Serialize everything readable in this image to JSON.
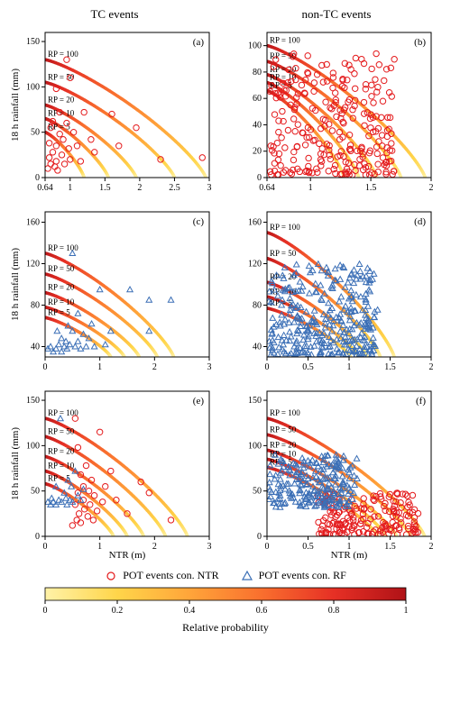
{
  "columns": [
    "TC events",
    "non-TC events"
  ],
  "ylabel": "18 h rainfall (mm)",
  "xlabel": "NTR (m)",
  "rp_labels": [
    "RP = 100",
    "RP = 50",
    "RP = 20",
    "RP = 10",
    "RP = 5"
  ],
  "legend": {
    "ntr": "POT events con. NTR",
    "rf": "POT events con. RF"
  },
  "cb": {
    "label": "Relative probability",
    "ticks": [
      0,
      0.2,
      0.4,
      0.6,
      0.8,
      1
    ],
    "colors": [
      "#fff2a8",
      "#ffd54a",
      "#ffa53a",
      "#f96f2e",
      "#e63025",
      "#b01217"
    ]
  },
  "style": {
    "axis_color": "#000",
    "tick_fontsize": 10,
    "label_fontsize": 11,
    "marker_size": 3.2,
    "ntr_color": "#e41a1c",
    "rf_color": "#3b6fb6",
    "curve_width": 3.5,
    "label_rp_fontsize": 9
  },
  "panels": {
    "a": {
      "tag": "(a)",
      "xlim": [
        0.64,
        3
      ],
      "ylim": [
        0,
        160
      ],
      "xticks": [
        0.64,
        1,
        1.5,
        2,
        2.5,
        3
      ],
      "yticks": [
        0,
        50,
        100,
        150
      ],
      "curves": [
        {
          "y0": 130,
          "x0": 2.95
        },
        {
          "y0": 105,
          "x0": 2.5
        },
        {
          "y0": 80,
          "x0": 1.95
        },
        {
          "y0": 65,
          "x0": 1.55
        },
        {
          "y0": 50,
          "x0": 1.2
        }
      ],
      "ntr": [
        [
          0.68,
          10
        ],
        [
          0.7,
          38
        ],
        [
          0.7,
          22
        ],
        [
          0.72,
          55
        ],
        [
          0.72,
          15
        ],
        [
          0.75,
          62
        ],
        [
          0.75,
          28
        ],
        [
          0.78,
          12
        ],
        [
          0.8,
          98
        ],
        [
          0.8,
          35
        ],
        [
          0.8,
          18
        ],
        [
          0.82,
          8
        ],
        [
          0.85,
          48
        ],
        [
          0.85,
          72
        ],
        [
          0.88,
          25
        ],
        [
          0.9,
          42
        ],
        [
          0.92,
          15
        ],
        [
          0.95,
          130
        ],
        [
          0.95,
          60
        ],
        [
          0.98,
          32
        ],
        [
          1.0,
          110
        ],
        [
          1.0,
          20
        ],
        [
          1.05,
          50
        ],
        [
          1.1,
          35
        ],
        [
          1.15,
          18
        ],
        [
          1.2,
          72
        ],
        [
          1.3,
          42
        ],
        [
          1.35,
          28
        ],
        [
          1.6,
          70
        ],
        [
          1.7,
          35
        ],
        [
          1.95,
          55
        ],
        [
          2.3,
          20
        ],
        [
          2.9,
          22
        ]
      ],
      "rf": []
    },
    "b": {
      "tag": "(b)",
      "xlim": [
        0.64,
        2
      ],
      "ylim": [
        0,
        110
      ],
      "xticks": [
        0.64,
        1,
        1.5,
        2
      ],
      "yticks": [
        0,
        20,
        40,
        60,
        80,
        100
      ],
      "curves": [
        {
          "y0": 100,
          "x0": 1.95
        },
        {
          "y0": 88,
          "x0": 1.75
        },
        {
          "y0": 78,
          "x0": 1.55
        },
        {
          "y0": 72,
          "x0": 1.4
        },
        {
          "y0": 66,
          "x0": 1.28
        }
      ],
      "ntr": "dense",
      "rf": []
    },
    "c": {
      "tag": "(c)",
      "xlim": [
        0,
        3
      ],
      "ylim": [
        30,
        170
      ],
      "xticks": [
        0,
        1,
        2,
        3
      ],
      "yticks": [
        40,
        80,
        120,
        160
      ],
      "curves": [
        {
          "y0": 130,
          "x0": 2.35
        },
        {
          "y0": 110,
          "x0": 2.05
        },
        {
          "y0": 92,
          "x0": 1.72
        },
        {
          "y0": 78,
          "x0": 1.45
        },
        {
          "y0": 68,
          "x0": 1.2
        }
      ],
      "ntr": [],
      "rf": [
        [
          0.05,
          38
        ],
        [
          0.1,
          40
        ],
        [
          0.15,
          35
        ],
        [
          0.2,
          38
        ],
        [
          0.22,
          55
        ],
        [
          0.25,
          42
        ],
        [
          0.3,
          35
        ],
        [
          0.3,
          48
        ],
        [
          0.35,
          40
        ],
        [
          0.38,
          45
        ],
        [
          0.4,
          38
        ],
        [
          0.42,
          60
        ],
        [
          0.45,
          42
        ],
        [
          0.5,
          55
        ],
        [
          0.5,
          130
        ],
        [
          0.55,
          40
        ],
        [
          0.6,
          72
        ],
        [
          0.6,
          45
        ],
        [
          0.65,
          38
        ],
        [
          0.7,
          52
        ],
        [
          0.75,
          40
        ],
        [
          0.8,
          48
        ],
        [
          0.85,
          62
        ],
        [
          0.9,
          40
        ],
        [
          1.0,
          95
        ],
        [
          1.1,
          42
        ],
        [
          1.2,
          55
        ],
        [
          1.55,
          95
        ],
        [
          1.9,
          85
        ],
        [
          1.9,
          55
        ],
        [
          2.3,
          85
        ]
      ]
    },
    "d": {
      "tag": "(d)",
      "xlim": [
        0,
        2
      ],
      "ylim": [
        30,
        170
      ],
      "xticks": [
        0,
        0.5,
        1,
        1.5,
        2
      ],
      "yticks": [
        40,
        80,
        120,
        160
      ],
      "curves": [
        {
          "y0": 150,
          "x0": 1.55
        },
        {
          "y0": 125,
          "x0": 1.38
        },
        {
          "y0": 102,
          "x0": 1.22
        },
        {
          "y0": 88,
          "x0": 1.12
        },
        {
          "y0": 77,
          "x0": 1.02
        }
      ],
      "ntr": [],
      "rf": "dense"
    },
    "e": {
      "tag": "(e)",
      "xlim": [
        0,
        3
      ],
      "ylim": [
        0,
        160
      ],
      "xticks": [
        0,
        1,
        2,
        3
      ],
      "yticks": [
        0,
        50,
        100,
        150
      ],
      "curves": [
        {
          "y0": 130,
          "x0": 2.6
        },
        {
          "y0": 110,
          "x0": 2.2
        },
        {
          "y0": 88,
          "x0": 1.8
        },
        {
          "y0": 72,
          "x0": 1.5
        },
        {
          "y0": 58,
          "x0": 1.25
        }
      ],
      "ntr": [
        [
          0.5,
          12
        ],
        [
          0.55,
          130
        ],
        [
          0.55,
          35
        ],
        [
          0.58,
          18
        ],
        [
          0.6,
          48
        ],
        [
          0.6,
          98
        ],
        [
          0.62,
          25
        ],
        [
          0.65,
          68
        ],
        [
          0.65,
          15
        ],
        [
          0.7,
          40
        ],
        [
          0.7,
          55
        ],
        [
          0.72,
          30
        ],
        [
          0.75,
          78
        ],
        [
          0.78,
          22
        ],
        [
          0.8,
          50
        ],
        [
          0.82,
          35
        ],
        [
          0.85,
          62
        ],
        [
          0.88,
          18
        ],
        [
          0.9,
          45
        ],
        [
          0.95,
          28
        ],
        [
          1.0,
          115
        ],
        [
          1.05,
          38
        ],
        [
          1.1,
          55
        ],
        [
          1.2,
          72
        ],
        [
          1.3,
          40
        ],
        [
          1.5,
          25
        ],
        [
          1.75,
          60
        ],
        [
          1.9,
          48
        ],
        [
          2.3,
          18
        ]
      ],
      "rf": [
        [
          0.05,
          38
        ],
        [
          0.1,
          35
        ],
        [
          0.12,
          42
        ],
        [
          0.15,
          38
        ],
        [
          0.2,
          35
        ],
        [
          0.2,
          55
        ],
        [
          0.25,
          40
        ],
        [
          0.28,
          130
        ],
        [
          0.3,
          38
        ],
        [
          0.35,
          48
        ],
        [
          0.38,
          42
        ],
        [
          0.4,
          35
        ],
        [
          0.42,
          62
        ],
        [
          0.45,
          40
        ],
        [
          0.48,
          55
        ],
        [
          0.5,
          38
        ],
        [
          0.55,
          72
        ],
        [
          0.6,
          45
        ],
        [
          0.65,
          40
        ],
        [
          0.7,
          52
        ]
      ]
    },
    "f": {
      "tag": "(f)",
      "xlim": [
        0,
        2
      ],
      "ylim": [
        0,
        160
      ],
      "xticks": [
        0,
        0.5,
        1,
        1.5,
        2
      ],
      "yticks": [
        0,
        50,
        100,
        150
      ],
      "curves": [
        {
          "y0": 130,
          "x0": 1.92
        },
        {
          "y0": 112,
          "x0": 1.75
        },
        {
          "y0": 95,
          "x0": 1.58
        },
        {
          "y0": 85,
          "x0": 1.45
        },
        {
          "y0": 76,
          "x0": 1.35
        }
      ],
      "ntr": "dense_low",
      "rf": "dense_mid"
    }
  }
}
